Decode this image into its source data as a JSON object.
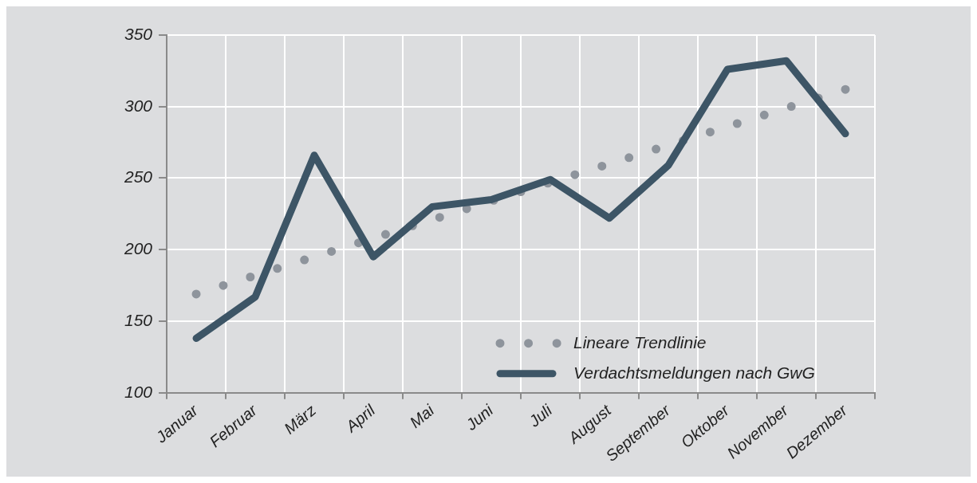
{
  "chart_data": {
    "type": "line",
    "categories": [
      "Januar",
      "Februar",
      "März",
      "April",
      "Mai",
      "Juni",
      "Juli",
      "August",
      "September",
      "Oktober",
      "November",
      "Dezember"
    ],
    "series": [
      {
        "name": "Lineare Trendlinie",
        "color": "#8e949c",
        "line_style": "dotted",
        "values": [
          169,
          182,
          195,
          208,
          221,
          234,
          247,
          260,
          273,
          286,
          299,
          312
        ]
      },
      {
        "name": "Verdachtsmeldungen nach GwG",
        "color": "#3d5566",
        "line_style": "solid",
        "values": [
          138,
          167,
          266,
          195,
          230,
          235,
          249,
          222,
          259,
          326,
          332,
          281
        ]
      }
    ],
    "ylim": [
      100,
      350
    ],
    "yticks": [
      100,
      150,
      200,
      250,
      300,
      350
    ],
    "grid": true,
    "legend": "bottom right",
    "marker": "none"
  }
}
